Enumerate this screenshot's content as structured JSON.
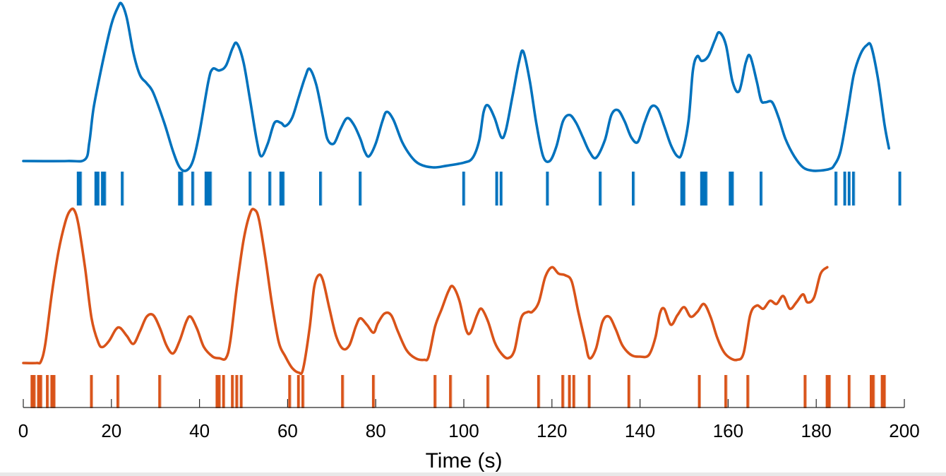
{
  "chart_data": {
    "type": "line",
    "title": "",
    "xlabel": "Time (s)",
    "ylabel": "",
    "xlim": [
      0,
      200
    ],
    "xticks": [
      0,
      20,
      40,
      60,
      80,
      100,
      120,
      140,
      160,
      180,
      200
    ],
    "grid": false,
    "series": [
      {
        "color": "#0072BD",
        "trace": [
          [
            0,
            0.0
          ],
          [
            10,
            0.0
          ],
          [
            14,
            0.01
          ],
          [
            15,
            0.12
          ],
          [
            16,
            0.34
          ],
          [
            18,
            0.62
          ],
          [
            20,
            0.86
          ],
          [
            21.5,
            0.97
          ],
          [
            22.3,
            0.99
          ],
          [
            23.5,
            0.9
          ],
          [
            25,
            0.68
          ],
          [
            26.5,
            0.54
          ],
          [
            28,
            0.49
          ],
          [
            29.5,
            0.43
          ],
          [
            32,
            0.24
          ],
          [
            34,
            0.06
          ],
          [
            35.5,
            -0.04
          ],
          [
            37,
            -0.06
          ],
          [
            38.5,
            0.0
          ],
          [
            40,
            0.18
          ],
          [
            42,
            0.5
          ],
          [
            43,
            0.58
          ],
          [
            44.5,
            0.57
          ],
          [
            46,
            0.6
          ],
          [
            47.5,
            0.71
          ],
          [
            48.5,
            0.74
          ],
          [
            50,
            0.62
          ],
          [
            51.5,
            0.38
          ],
          [
            53,
            0.13
          ],
          [
            54,
            0.03
          ],
          [
            55.5,
            0.11
          ],
          [
            57,
            0.24
          ],
          [
            58.5,
            0.24
          ],
          [
            59.5,
            0.22
          ],
          [
            61,
            0.27
          ],
          [
            62.5,
            0.4
          ],
          [
            64,
            0.53
          ],
          [
            65,
            0.58
          ],
          [
            66.5,
            0.48
          ],
          [
            68,
            0.28
          ],
          [
            69,
            0.14
          ],
          [
            70.5,
            0.11
          ],
          [
            72,
            0.2
          ],
          [
            73.5,
            0.27
          ],
          [
            75,
            0.23
          ],
          [
            76.5,
            0.14
          ],
          [
            77.5,
            0.06
          ],
          [
            78.5,
            0.03
          ],
          [
            80,
            0.11
          ],
          [
            81.5,
            0.25
          ],
          [
            82.5,
            0.31
          ],
          [
            84,
            0.26
          ],
          [
            86,
            0.12
          ],
          [
            88,
            0.03
          ],
          [
            90,
            -0.02
          ],
          [
            93,
            -0.04
          ],
          [
            96,
            -0.03
          ],
          [
            100,
            -0.01
          ],
          [
            102,
            0.02
          ],
          [
            103.5,
            0.13
          ],
          [
            104.5,
            0.31
          ],
          [
            105.5,
            0.35
          ],
          [
            107,
            0.27
          ],
          [
            108.5,
            0.15
          ],
          [
            109.5,
            0.19
          ],
          [
            111,
            0.4
          ],
          [
            112.5,
            0.62
          ],
          [
            113.5,
            0.69
          ],
          [
            115,
            0.5
          ],
          [
            116.5,
            0.23
          ],
          [
            118,
            0.03
          ],
          [
            119.5,
            0.0
          ],
          [
            121,
            0.09
          ],
          [
            122.5,
            0.25
          ],
          [
            124,
            0.29
          ],
          [
            125.5,
            0.24
          ],
          [
            127,
            0.15
          ],
          [
            128.5,
            0.06
          ],
          [
            130,
            0.02
          ],
          [
            132,
            0.13
          ],
          [
            133.5,
            0.29
          ],
          [
            135,
            0.32
          ],
          [
            136.5,
            0.25
          ],
          [
            138,
            0.15
          ],
          [
            139.5,
            0.12
          ],
          [
            141,
            0.24
          ],
          [
            142.5,
            0.34
          ],
          [
            144,
            0.33
          ],
          [
            145.5,
            0.22
          ],
          [
            147,
            0.1
          ],
          [
            148.5,
            0.03
          ],
          [
            149.5,
            0.05
          ],
          [
            151,
            0.25
          ],
          [
            152,
            0.57
          ],
          [
            153,
            0.66
          ],
          [
            154,
            0.63
          ],
          [
            155.5,
            0.66
          ],
          [
            157,
            0.76
          ],
          [
            158,
            0.81
          ],
          [
            159.5,
            0.73
          ],
          [
            161,
            0.5
          ],
          [
            162.5,
            0.44
          ],
          [
            164,
            0.62
          ],
          [
            165,
            0.66
          ],
          [
            166.5,
            0.5
          ],
          [
            167.5,
            0.38
          ],
          [
            168.5,
            0.37
          ],
          [
            170,
            0.37
          ],
          [
            171.5,
            0.27
          ],
          [
            173,
            0.14
          ],
          [
            175,
            0.03
          ],
          [
            177,
            -0.04
          ],
          [
            179,
            -0.06
          ],
          [
            181,
            -0.06
          ],
          [
            183,
            -0.05
          ],
          [
            184,
            -0.03
          ],
          [
            185.5,
            0.06
          ],
          [
            187,
            0.29
          ],
          [
            188.5,
            0.54
          ],
          [
            190,
            0.67
          ],
          [
            191.5,
            0.73
          ],
          [
            192.5,
            0.72
          ],
          [
            194,
            0.52
          ],
          [
            195.5,
            0.23
          ],
          [
            196.5,
            0.08
          ]
        ],
        "events": [
          12.5,
          13,
          16.5,
          17,
          18,
          18.5,
          22.5,
          35.5,
          36,
          38.5,
          41.5,
          42,
          42.5,
          51.5,
          56,
          58.5,
          59,
          67.5,
          76.5,
          100,
          107.5,
          108.5,
          119,
          131,
          138.5,
          149.5,
          150,
          154,
          154.5,
          155,
          160.5,
          161,
          167.5,
          184.5,
          186.5,
          187.5,
          188.5,
          199
        ]
      },
      {
        "color": "#D95319",
        "trace": [
          [
            0,
            0.0
          ],
          [
            3,
            0.0
          ],
          [
            4,
            0.01
          ],
          [
            5,
            0.12
          ],
          [
            6.5,
            0.44
          ],
          [
            8,
            0.7
          ],
          [
            9.5,
            0.88
          ],
          [
            10.5,
            0.95
          ],
          [
            11.5,
            0.96
          ],
          [
            12.5,
            0.87
          ],
          [
            14,
            0.6
          ],
          [
            15.5,
            0.28
          ],
          [
            17,
            0.13
          ],
          [
            18,
            0.1
          ],
          [
            19.5,
            0.14
          ],
          [
            21,
            0.21
          ],
          [
            22,
            0.22
          ],
          [
            23.5,
            0.17
          ],
          [
            25,
            0.12
          ],
          [
            26.5,
            0.2
          ],
          [
            28,
            0.29
          ],
          [
            29.5,
            0.3
          ],
          [
            31,
            0.22
          ],
          [
            32.5,
            0.11
          ],
          [
            34,
            0.06
          ],
          [
            35.5,
            0.14
          ],
          [
            37,
            0.26
          ],
          [
            38,
            0.29
          ],
          [
            39.5,
            0.21
          ],
          [
            41,
            0.1
          ],
          [
            43,
            0.04
          ],
          [
            44.5,
            0.03
          ],
          [
            46,
            0.03
          ],
          [
            47,
            0.14
          ],
          [
            48.5,
            0.48
          ],
          [
            50,
            0.77
          ],
          [
            51.5,
            0.94
          ],
          [
            52.5,
            0.96
          ],
          [
            53.5,
            0.9
          ],
          [
            55,
            0.65
          ],
          [
            56.5,
            0.36
          ],
          [
            58,
            0.13
          ],
          [
            59.5,
            0.04
          ],
          [
            61,
            -0.03
          ],
          [
            62.5,
            -0.06
          ],
          [
            63.5,
            -0.04
          ],
          [
            65,
            0.22
          ],
          [
            66,
            0.47
          ],
          [
            67,
            0.55
          ],
          [
            68,
            0.52
          ],
          [
            69.5,
            0.34
          ],
          [
            71,
            0.17
          ],
          [
            72.5,
            0.09
          ],
          [
            74,
            0.11
          ],
          [
            75.5,
            0.23
          ],
          [
            76.5,
            0.28
          ],
          [
            78,
            0.24
          ],
          [
            79.5,
            0.19
          ],
          [
            80.5,
            0.25
          ],
          [
            82,
            0.31
          ],
          [
            83.5,
            0.3
          ],
          [
            85,
            0.2
          ],
          [
            87,
            0.08
          ],
          [
            89,
            0.03
          ],
          [
            91,
            0.02
          ],
          [
            92,
            0.04
          ],
          [
            93.5,
            0.23
          ],
          [
            95,
            0.34
          ],
          [
            96.5,
            0.45
          ],
          [
            97.5,
            0.48
          ],
          [
            99,
            0.39
          ],
          [
            100.5,
            0.21
          ],
          [
            101.5,
            0.19
          ],
          [
            103,
            0.3
          ],
          [
            104,
            0.34
          ],
          [
            105.5,
            0.26
          ],
          [
            107,
            0.13
          ],
          [
            108.5,
            0.06
          ],
          [
            110,
            0.03
          ],
          [
            111.5,
            0.08
          ],
          [
            113,
            0.28
          ],
          [
            114.5,
            0.32
          ],
          [
            115.5,
            0.32
          ],
          [
            117,
            0.38
          ],
          [
            118.5,
            0.54
          ],
          [
            120,
            0.6
          ],
          [
            121.5,
            0.56
          ],
          [
            123,
            0.55
          ],
          [
            124.5,
            0.51
          ],
          [
            126,
            0.32
          ],
          [
            127.5,
            0.14
          ],
          [
            128.5,
            0.03
          ],
          [
            130,
            0.09
          ],
          [
            131.5,
            0.26
          ],
          [
            133,
            0.29
          ],
          [
            134.5,
            0.21
          ],
          [
            136,
            0.11
          ],
          [
            138,
            0.05
          ],
          [
            140,
            0.04
          ],
          [
            142,
            0.05
          ],
          [
            143.5,
            0.16
          ],
          [
            144.5,
            0.31
          ],
          [
            145.5,
            0.34
          ],
          [
            147,
            0.24
          ],
          [
            148.5,
            0.3
          ],
          [
            150,
            0.35
          ],
          [
            151.5,
            0.29
          ],
          [
            153,
            0.32
          ],
          [
            154.5,
            0.37
          ],
          [
            156,
            0.29
          ],
          [
            157.5,
            0.16
          ],
          [
            159,
            0.07
          ],
          [
            160.5,
            0.03
          ],
          [
            162,
            0.02
          ],
          [
            163.5,
            0.06
          ],
          [
            165,
            0.3
          ],
          [
            166.5,
            0.36
          ],
          [
            168,
            0.34
          ],
          [
            169.5,
            0.39
          ],
          [
            171,
            0.37
          ],
          [
            172.5,
            0.42
          ],
          [
            174,
            0.34
          ],
          [
            175.5,
            0.38
          ],
          [
            177,
            0.43
          ],
          [
            178,
            0.38
          ],
          [
            179.5,
            0.41
          ],
          [
            181,
            0.56
          ],
          [
            182.5,
            0.6
          ]
        ],
        "events": [
          2,
          2.5,
          3.5,
          4,
          5.5,
          6.5,
          7,
          15.5,
          21.5,
          31,
          44,
          44.5,
          45.5,
          47.5,
          48.5,
          49.5,
          60.5,
          62.5,
          63.5,
          72.5,
          79.5,
          93.5,
          97,
          105.5,
          117,
          122.5,
          124,
          125,
          128.5,
          137.5,
          153.5,
          159.5,
          164.5,
          177.5,
          182.5,
          183,
          187.5,
          192.5,
          193,
          195,
          195.5
        ]
      }
    ]
  }
}
